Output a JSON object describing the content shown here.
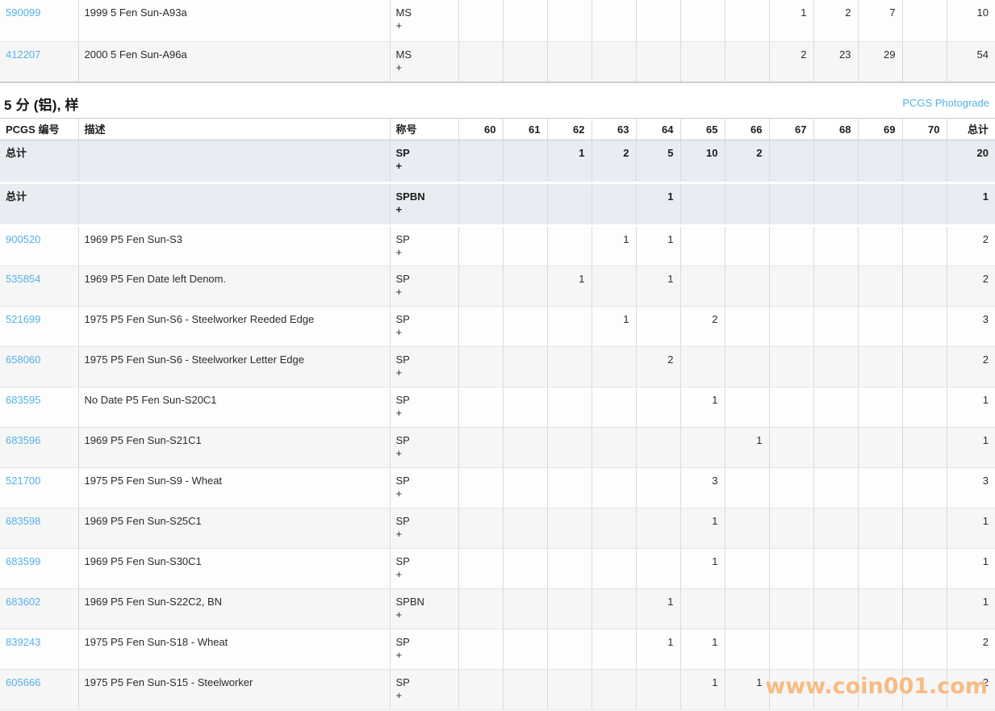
{
  "section": {
    "title": "5 分 (铝), 样",
    "photograde_link": "PCGS Photograde"
  },
  "watermark": "www.coin001.com",
  "grade_columns": [
    "60",
    "61",
    "62",
    "63",
    "64",
    "65",
    "66",
    "67",
    "68",
    "69",
    "70"
  ],
  "top_table": {
    "rows": [
      {
        "pcgs_no": "590099",
        "description": "1999 5 Fen Sun-A93a",
        "designation": "MS\n+",
        "values": {
          "67": "1",
          "68": "2",
          "69": "7"
        },
        "total": "10"
      },
      {
        "pcgs_no": "412207",
        "description": "2000 5 Fen Sun-A96a",
        "designation": "MS\n+",
        "values": {
          "67": "2",
          "68": "23",
          "69": "29"
        },
        "total": "54"
      }
    ]
  },
  "main_table": {
    "headers": {
      "pcgs_no": "PCGS 编号",
      "description": "描述",
      "designation": "称号",
      "total": "总计"
    },
    "rows": [
      {
        "type": "totals",
        "pcgs_no": "总计",
        "description": "",
        "designation": "SP\n+",
        "values": {
          "62": "1",
          "63": "2",
          "64": "5",
          "65": "10",
          "66": "2"
        },
        "total": "20"
      },
      {
        "type": "totals",
        "pcgs_no": "总计",
        "description": "",
        "designation": "SPBN\n+",
        "values": {
          "64": "1"
        },
        "total": "1"
      },
      {
        "pcgs_no": "900520",
        "description": "1969 P5 Fen Sun-S3",
        "designation": "SP\n+",
        "values": {
          "63": "1",
          "64": "1"
        },
        "total": "2"
      },
      {
        "pcgs_no": "535854",
        "description": "1969 P5 Fen Date left Denom.",
        "designation": "SP\n+",
        "values": {
          "62": "1",
          "64": "1"
        },
        "total": "2"
      },
      {
        "pcgs_no": "521699",
        "description": "1975 P5 Fen Sun-S6 - Steelworker Reeded Edge",
        "designation": "SP\n+",
        "values": {
          "63": "1",
          "65": "2"
        },
        "total": "3"
      },
      {
        "pcgs_no": "658060",
        "description": "1975 P5 Fen Sun-S6 - Steelworker Letter Edge",
        "designation": "SP\n+",
        "values": {
          "64": "2"
        },
        "total": "2"
      },
      {
        "pcgs_no": "683595",
        "description": "No Date P5 Fen Sun-S20C1",
        "designation": "SP\n+",
        "values": {
          "65": "1"
        },
        "total": "1"
      },
      {
        "pcgs_no": "683596",
        "description": "1969 P5 Fen Sun-S21C1",
        "designation": "SP\n+",
        "values": {
          "66": "1"
        },
        "total": "1"
      },
      {
        "pcgs_no": "521700",
        "description": "1975 P5 Fen Sun-S9 - Wheat",
        "designation": "SP\n+",
        "values": {
          "65": "3"
        },
        "total": "3"
      },
      {
        "pcgs_no": "683598",
        "description": "1969 P5 Fen Sun-S25C1",
        "designation": "SP\n+",
        "values": {
          "65": "1"
        },
        "total": "1"
      },
      {
        "pcgs_no": "683599",
        "description": "1969 P5 Fen Sun-S30C1",
        "designation": "SP\n+",
        "values": {
          "65": "1"
        },
        "total": "1"
      },
      {
        "pcgs_no": "683602",
        "description": "1969 P5 Fen Sun-S22C2, BN",
        "designation": "SPBN\n+",
        "values": {
          "64": "1"
        },
        "total": "1"
      },
      {
        "pcgs_no": "839243",
        "description": "1975 P5 Fen Sun-S18 - Wheat",
        "designation": "SP\n+",
        "values": {
          "64": "1",
          "65": "1"
        },
        "total": "2"
      },
      {
        "pcgs_no": "605666",
        "description": "1975 P5 Fen Sun-S15 - Steelworker",
        "designation": "SP\n+",
        "values": {
          "65": "1",
          "66": "1"
        },
        "total": "2"
      }
    ]
  },
  "colors": {
    "link_blue": "#55b1e8",
    "totals_row_bg": "#e7edf2",
    "alt_row_bg": "#f6f6f6",
    "watermark_orange": "#f7bb83",
    "grid_line": "#dadada"
  }
}
